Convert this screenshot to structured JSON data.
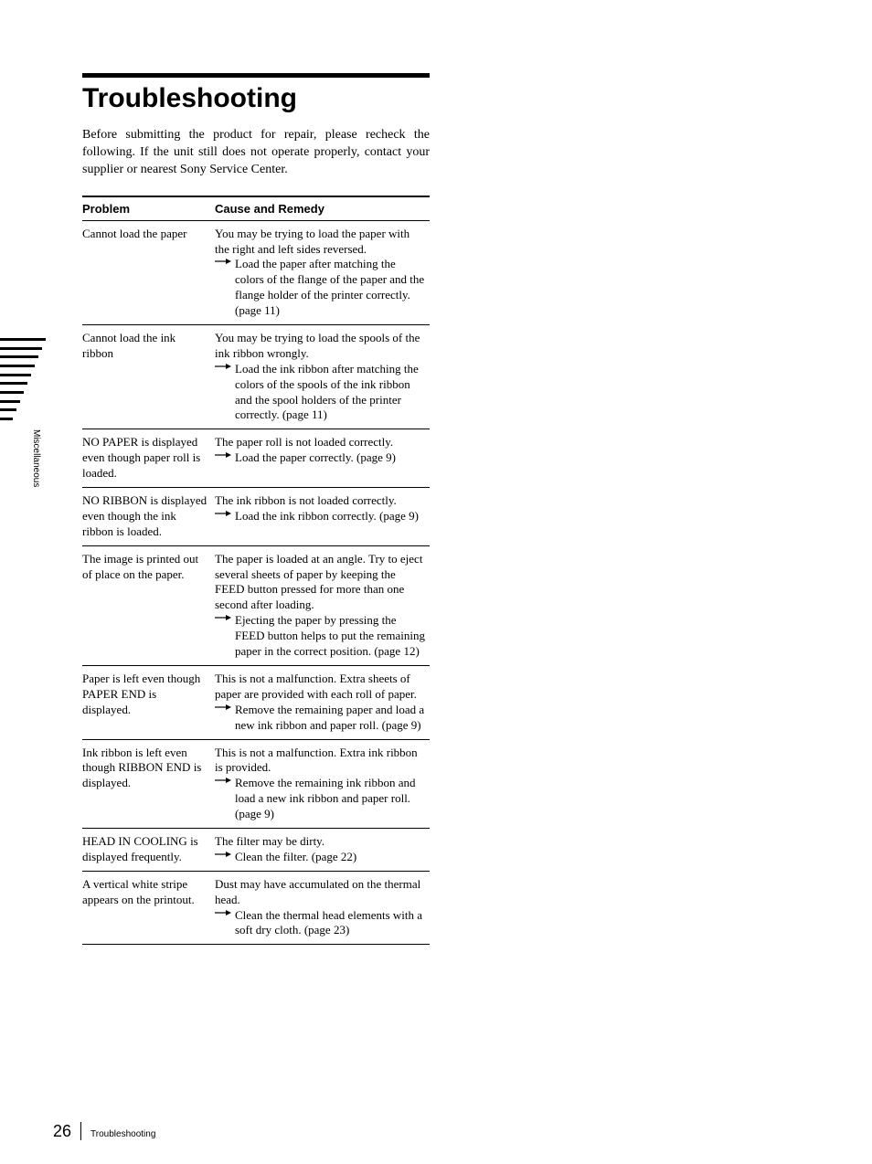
{
  "side_label": "Miscellaneous",
  "title": "Troubleshooting",
  "intro": "Before submitting the product for repair, please recheck the following. If the unit still does not operate properly, contact your supplier or nearest Sony Service Center.",
  "table": {
    "header_problem": "Problem",
    "header_remedy": "Cause and Remedy",
    "rows": [
      {
        "problem": "Cannot load the paper",
        "cause": "You may be trying to load the paper with the right and left sides reversed.",
        "remedy": "Load the paper after matching the colors of the flange of the paper and the flange holder of the printer correctly. (page 11)"
      },
      {
        "problem": "Cannot load the ink ribbon",
        "cause": "You may be trying to load the spools of the ink ribbon wrongly.",
        "remedy": "Load the ink ribbon after matching the colors of the spools of the ink ribbon and the spool holders of the printer correctly. (page 11)"
      },
      {
        "problem": "NO PAPER is displayed even though paper roll is loaded.",
        "cause": "The paper roll is not loaded correctly.",
        "remedy": "Load the paper correctly. (page 9)"
      },
      {
        "problem": "NO RIBBON is displayed even though the ink ribbon is loaded.",
        "cause": "The ink ribbon is not loaded correctly.",
        "remedy": "Load the ink ribbon correctly. (page 9)"
      },
      {
        "problem": "The image is printed out of place on the paper.",
        "cause": "The paper is loaded at an angle. Try to eject several sheets of paper by keeping the FEED button pressed for more than one second after loading.",
        "remedy": "Ejecting the paper by pressing the FEED button helps to put the remaining paper in the correct position. (page 12)"
      },
      {
        "problem": "Paper is left even though PAPER END is displayed.",
        "cause": "This is not a malfunction. Extra sheets of paper are provided with each roll of paper.",
        "remedy": "Remove the remaining paper and load a new ink ribbon and paper roll. (page 9)"
      },
      {
        "problem": "Ink ribbon is left even though RIBBON END is displayed.",
        "cause": "This is not a malfunction. Extra ink ribbon is provided.",
        "remedy": "Remove the remaining ink ribbon and load a new ink ribbon and paper roll. (page 9)"
      },
      {
        "problem": "HEAD IN COOLING is displayed frequently.",
        "cause": "The filter may be dirty.",
        "remedy": "Clean the filter. (page 22)"
      },
      {
        "problem": "A vertical white stripe appears on the printout.",
        "cause": "Dust may have accumulated on the thermal head.",
        "remedy": "Clean the thermal head elements with a soft dry cloth. (page 23)"
      }
    ]
  },
  "footer": {
    "page_num": "26",
    "section": "Troubleshooting"
  }
}
